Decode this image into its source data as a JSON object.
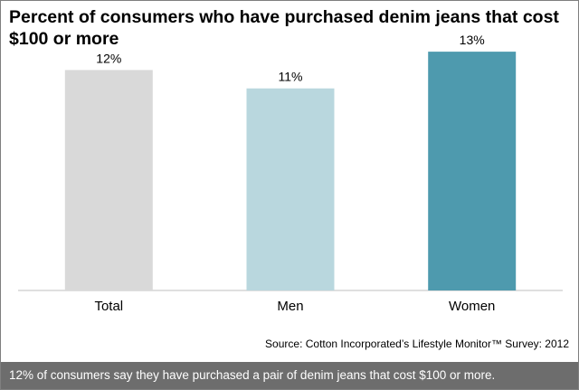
{
  "chart_data": {
    "type": "bar",
    "title": "Percent of consumers who have purchased denim jeans that cost $100 or more",
    "categories": [
      "Total",
      "Men",
      "Women"
    ],
    "values": [
      12,
      11,
      13
    ],
    "data_labels": [
      "12%",
      "11%",
      "13%"
    ],
    "colors": [
      "#d9d9d9",
      "#b9d7de",
      "#4e9aae"
    ],
    "ylim": [
      0,
      14
    ],
    "grid": false,
    "legend": "none",
    "xlabel": "",
    "ylabel": ""
  },
  "source": "Source: Cotton Incorporated’s Lifestyle Monitor™ Survey: 2012",
  "caption": "12% of consumers say they have purchased a pair of denim jeans that cost $100 or more."
}
